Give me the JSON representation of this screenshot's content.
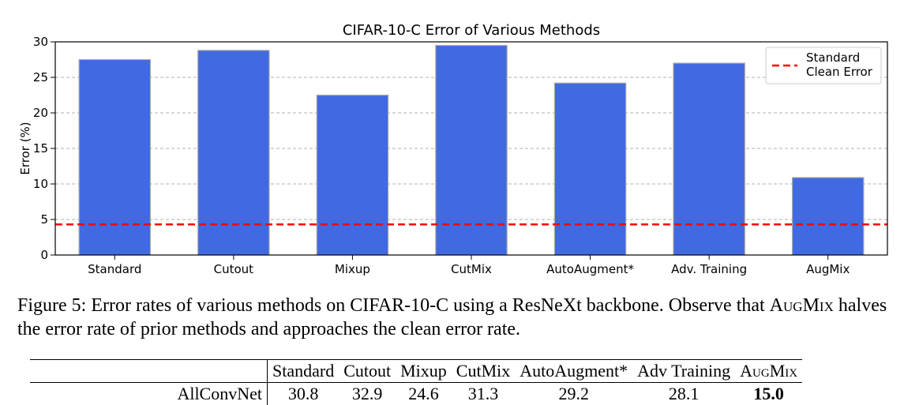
{
  "chart_data": {
    "type": "bar",
    "title": "CIFAR-10-C Error of Various Methods",
    "xlabel": "",
    "ylabel": "Error (%)",
    "categories": [
      "Standard",
      "Cutout",
      "Mixup",
      "CutMix",
      "AutoAugment*",
      "Adv. Training",
      "AugMix"
    ],
    "values": [
      27.5,
      28.8,
      22.5,
      29.5,
      24.2,
      27.0,
      10.9
    ],
    "ylim": [
      0,
      30
    ],
    "yticks": [
      0,
      5,
      10,
      15,
      20,
      25,
      30
    ],
    "grid": "horizontal dashed",
    "bar_color": "#4169e1",
    "reference_line": {
      "label": "Standard\nClean Error",
      "value": 4.3,
      "color": "#ff0000",
      "style": "dashed"
    },
    "legend_position": "top-right"
  },
  "caption": {
    "prefix": "Figure 5: Error rates of various methods on CIFAR-10-C using a ResNeXt backbone. Observe that ",
    "method": "AugMix",
    "suffix": " halves the error rate of prior methods and approaches the clean error rate."
  },
  "table": {
    "headers": [
      "Standard",
      "Cutout",
      "Mixup",
      "CutMix",
      "AutoAugment*",
      "Adv Training",
      "AugMix"
    ],
    "rows": [
      {
        "label": "AllConvNet",
        "values": [
          "30.8",
          "32.9",
          "24.6",
          "31.3",
          "29.2",
          "28.1",
          "15.0"
        ],
        "best_index": 6
      }
    ]
  }
}
